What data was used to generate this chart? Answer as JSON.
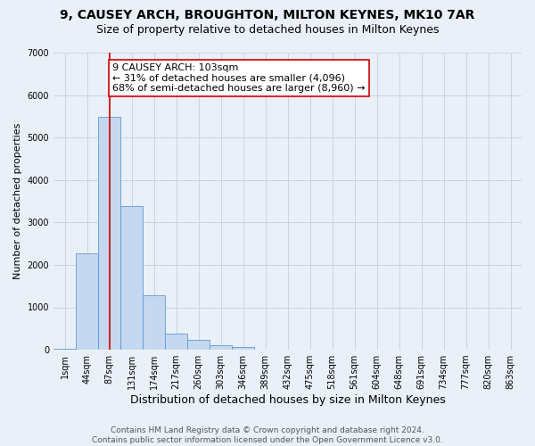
{
  "title": "9, CAUSEY ARCH, BROUGHTON, MILTON KEYNES, MK10 7AR",
  "subtitle": "Size of property relative to detached houses in Milton Keynes",
  "xlabel": "Distribution of detached houses by size in Milton Keynes",
  "ylabel": "Number of detached properties",
  "categories": [
    "1sqm",
    "44sqm",
    "87sqm",
    "131sqm",
    "174sqm",
    "217sqm",
    "260sqm",
    "303sqm",
    "346sqm",
    "389sqm",
    "432sqm",
    "475sqm",
    "518sqm",
    "561sqm",
    "604sqm",
    "648sqm",
    "691sqm",
    "734sqm",
    "777sqm",
    "820sqm",
    "863sqm"
  ],
  "values": [
    20,
    2280,
    5480,
    3380,
    1290,
    370,
    230,
    110,
    60,
    10,
    0,
    0,
    0,
    0,
    0,
    0,
    0,
    0,
    0,
    0,
    0
  ],
  "bar_color": "#c5d8f0",
  "bar_edge_color": "#5b9bd5",
  "bar_edge_width": 0.6,
  "property_line_x": 2,
  "property_line_color": "#cc0000",
  "annotation_text": "9 CAUSEY ARCH: 103sqm\n← 31% of detached houses are smaller (4,096)\n68% of semi-detached houses are larger (8,960) →",
  "annotation_box_color": "#ffffff",
  "annotation_box_edge_color": "#cc0000",
  "ylim": [
    0,
    7000
  ],
  "yticks": [
    0,
    1000,
    2000,
    3000,
    4000,
    5000,
    6000,
    7000
  ],
  "grid_color": "#c8d4e0",
  "background_color": "#eaf0f8",
  "footer_text": "Contains HM Land Registry data © Crown copyright and database right 2024.\nContains public sector information licensed under the Open Government Licence v3.0.",
  "title_fontsize": 10,
  "subtitle_fontsize": 9,
  "xlabel_fontsize": 9,
  "ylabel_fontsize": 8,
  "tick_fontsize": 7,
  "footer_fontsize": 6.5,
  "annotation_fontsize": 8
}
